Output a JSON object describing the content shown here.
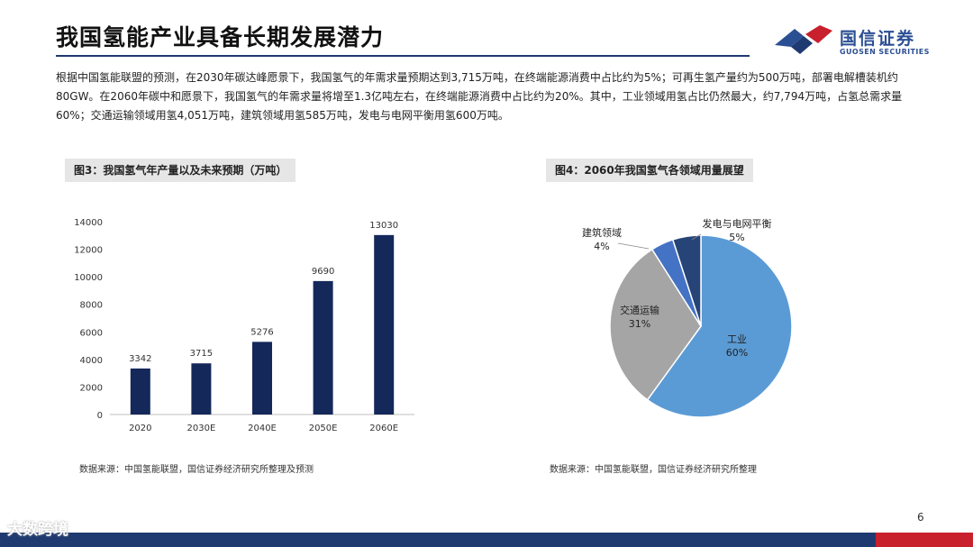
{
  "header": {
    "title": "我国氢能产业具备长期发展潜力",
    "logo_cn": "国信证券",
    "logo_en": "GUOSEN SECURITIES"
  },
  "intro_text": "根据中国氢能联盟的预测，在2030年碳达峰愿景下，我国氢气的年需求量预期达到3,715万吨，在终端能源消费中占比约为5%；可再生氢产量约为500万吨，部署电解槽装机约80GW。在2060年碳中和愿景下，我国氢气的年需求量将增至1.3亿吨左右，在终端能源消费中占比约为20%。其中，工业领域用氢占比仍然最大，约7,794万吨，占氢总需求量60%；交通运输领域用氢4,051万吨，建筑领域用氢585万吨，发电与电网平衡用氢600万吨。",
  "figures": {
    "fig3_title": "图3：我国氢气年产量以及未来预期（万吨）",
    "fig4_title": "图4：2060年我国氢气各领域用量展望",
    "source_left": "数据来源：中国氢能联盟，国信证券经济研究所整理及预测",
    "source_right": "数据来源：中国氢能联盟，国信证券经济研究所整理"
  },
  "chart_data": [
    {
      "type": "bar",
      "categories": [
        "2020",
        "2030E",
        "2040E",
        "2050E",
        "2060E"
      ],
      "values": [
        3342,
        3715,
        5276,
        9690,
        13030
      ],
      "data_labels": [
        "3342",
        "3715",
        "5276",
        "9690",
        "13030"
      ],
      "ylim": [
        0,
        14000
      ],
      "yticks": [
        "0",
        "2000",
        "4000",
        "6000",
        "8000",
        "10000",
        "12000",
        "14000"
      ],
      "grid": false,
      "bar_color": "#14285a"
    },
    {
      "type": "pie",
      "slices": [
        {
          "label": "工业",
          "value": 60,
          "pct": "60%",
          "color": "#5b9bd5"
        },
        {
          "label": "交通运输",
          "value": 31,
          "pct": "31%",
          "color": "#a5a5a5"
        },
        {
          "label": "建筑领域",
          "value": 4,
          "pct": "4%",
          "color": "#4472c4"
        },
        {
          "label": "发电与电网平衡",
          "value": 5,
          "pct": "5%",
          "color": "#264478"
        }
      ]
    }
  ],
  "footer": {
    "page_number": "6",
    "watermark": "大数跨境"
  },
  "colors": {
    "brand_blue": "#1f3a70",
    "brand_red": "#c8202d"
  }
}
